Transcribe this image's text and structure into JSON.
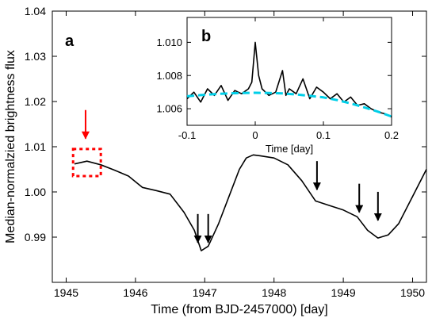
{
  "chart_data": [
    {
      "type": "line",
      "panel_label": "a",
      "xlabel": "Time (from BJD-2457000) [day]",
      "ylabel": "Median-normalzied brightness flux",
      "xlim": [
        1944.8,
        1950.2
      ],
      "ylim": [
        0.98,
        1.04
      ],
      "xticks": [
        1945,
        1946,
        1947,
        1948,
        1949,
        1950
      ],
      "xtick_labels": [
        "1945",
        "1946",
        "1947",
        "1948",
        "1949",
        "1950"
      ],
      "yticks": [
        0.99,
        1.0,
        1.01,
        1.02,
        1.03,
        1.04
      ],
      "ytick_labels": [
        "0.99",
        "1.00",
        "1.01",
        "1.02",
        "1.03",
        "1.04"
      ],
      "grid": false,
      "series": [
        {
          "color": "#000000",
          "x": [
            1945.12,
            1945.3,
            1945.5,
            1945.7,
            1945.9,
            1946.1,
            1946.3,
            1946.5,
            1946.7,
            1946.85,
            1946.95,
            1947.05,
            1947.2,
            1947.35,
            1947.5,
            1947.6,
            1947.7,
            1947.8,
            1948.0,
            1948.2,
            1948.4,
            1948.6,
            1948.8,
            1949.0,
            1949.2,
            1949.35,
            1949.5,
            1949.65,
            1949.8,
            1950.0,
            1950.2
          ],
          "y": [
            1.0062,
            1.0068,
            1.006,
            1.0048,
            1.0035,
            1.001,
            1.0003,
            0.9995,
            0.9955,
            0.9915,
            0.987,
            0.988,
            0.993,
            0.999,
            1.005,
            1.0075,
            1.0082,
            1.008,
            1.0075,
            1.006,
            1.0025,
            0.998,
            0.997,
            0.996,
            0.9945,
            0.9915,
            0.9898,
            0.9905,
            0.993,
            0.999,
            1.005
          ]
        }
      ],
      "annotations": [
        {
          "type": "arrow",
          "color": "#ff0000",
          "x": 1945.28,
          "y_tip": 1.0118
        },
        {
          "type": "dotted-box",
          "color": "#ff0000",
          "x0": 1945.1,
          "x1": 1945.5,
          "y0": 1.0035,
          "y1": 1.0095
        },
        {
          "type": "arrow",
          "color": "#000000",
          "x": 1946.9,
          "y_tip": 0.9888
        },
        {
          "type": "arrow",
          "color": "#000000",
          "x": 1947.05,
          "y_tip": 0.9888
        },
        {
          "type": "arrow",
          "color": "#000000",
          "x": 1948.62,
          "y_tip": 1.0005
        },
        {
          "type": "arrow",
          "color": "#000000",
          "x": 1949.23,
          "y_tip": 0.9955
        },
        {
          "type": "arrow",
          "color": "#000000",
          "x": 1949.5,
          "y_tip": 0.9937
        }
      ]
    },
    {
      "type": "line",
      "panel_label": "b",
      "xlabel": "Time [day]",
      "ylabel": "",
      "xlim": [
        -0.1,
        0.2
      ],
      "ylim": [
        1.005,
        1.0115
      ],
      "xticks": [
        -0.1,
        0,
        0.1,
        0.2
      ],
      "xtick_labels": [
        "-0.1",
        "0",
        "0.1",
        "0.2"
      ],
      "yticks": [
        1.006,
        1.008,
        1.01
      ],
      "ytick_labels": [
        "1.006",
        "1.008",
        "1.010"
      ],
      "grid": false,
      "series": [
        {
          "color": "#000000",
          "x": [
            -0.1,
            -0.09,
            -0.08,
            -0.07,
            -0.06,
            -0.05,
            -0.04,
            -0.03,
            -0.02,
            -0.01,
            -0.005,
            0.0,
            0.005,
            0.01,
            0.02,
            0.03,
            0.04,
            0.045,
            0.05,
            0.06,
            0.07,
            0.08,
            0.09,
            0.1,
            0.11,
            0.12,
            0.13,
            0.14,
            0.15,
            0.16,
            0.17,
            0.18,
            0.19,
            0.2
          ],
          "y": [
            1.0066,
            1.007,
            1.0064,
            1.0072,
            1.0068,
            1.0074,
            1.0065,
            1.0071,
            1.0069,
            1.0072,
            1.0076,
            1.01,
            1.008,
            1.0072,
            1.0068,
            1.007,
            1.0083,
            1.0068,
            1.0072,
            1.0069,
            1.0078,
            1.0066,
            1.0073,
            1.007,
            1.0066,
            1.0069,
            1.0064,
            1.0067,
            1.0062,
            1.0063,
            1.006,
            1.0058,
            1.0057,
            1.0055
          ]
        },
        {
          "color": "#00cfe8",
          "style": "dashed",
          "x": [
            -0.1,
            -0.08,
            -0.06,
            -0.04,
            -0.02,
            0.0,
            0.02,
            0.04,
            0.06,
            0.08,
            0.1,
            0.12,
            0.14,
            0.16,
            0.18,
            0.2
          ],
          "y": [
            1.00675,
            1.00682,
            1.00688,
            1.00692,
            1.00695,
            1.00696,
            1.00695,
            1.00692,
            1.00686,
            1.00678,
            1.00668,
            1.00652,
            1.00632,
            1.00608,
            1.00582,
            1.00553
          ]
        }
      ]
    }
  ]
}
